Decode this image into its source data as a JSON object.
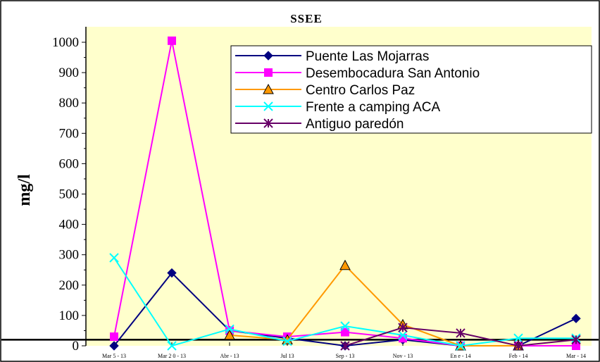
{
  "chart_data": {
    "type": "line",
    "title": "SSEE",
    "ylabel": "mg/l",
    "xlabel": "",
    "categories": [
      "Mar 5 - 13",
      "Mar 2 0 - 13",
      "Abr - 13",
      "Jul 13",
      "Sep - 13",
      "Nov - 13",
      "En e - 14",
      "Feb - 14",
      "Mar - 14"
    ],
    "yticks": [
      "0",
      "100",
      "200",
      "300",
      "400",
      "500",
      "600",
      "700",
      "800",
      "900",
      "1000"
    ],
    "ylim": [
      0,
      1000
    ],
    "reference_line": 20,
    "legend_position": "top-right",
    "series": [
      {
        "name": "Puente Las Mojarras",
        "color": "#000080",
        "marker": "diamond",
        "values": [
          0,
          240,
          50,
          25,
          0,
          20,
          0,
          0,
          90
        ]
      },
      {
        "name": "Desembocadura San Antonio",
        "color": "#ff00ff",
        "marker": "square",
        "values": [
          30,
          1005,
          50,
          30,
          45,
          25,
          0,
          0,
          0
        ]
      },
      {
        "name": "Centro Carlos Paz",
        "color": "#ff9900",
        "marker": "triangle",
        "values": [
          null,
          null,
          35,
          20,
          265,
          70,
          0,
          0,
          null
        ]
      },
      {
        "name": "Frente a camping ACA",
        "color": "#00ffff",
        "marker": "x",
        "values": [
          290,
          0,
          55,
          15,
          65,
          35,
          0,
          25,
          25
        ]
      },
      {
        "name": "Antiguo paredón",
        "color": "#660066",
        "marker": "asterisk",
        "values": [
          null,
          null,
          null,
          null,
          0,
          60,
          42,
          0,
          20
        ]
      }
    ]
  }
}
